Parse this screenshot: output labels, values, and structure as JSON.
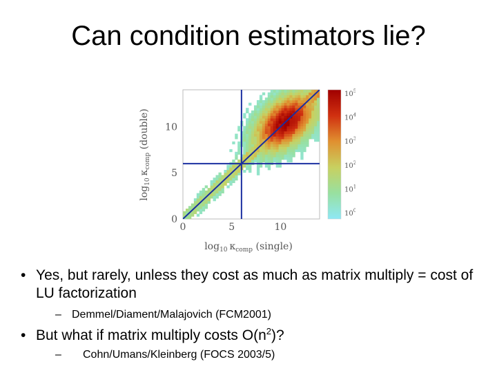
{
  "title": "Can condition estimators lie?",
  "bullets": [
    {
      "text": "Yes, but rarely, unless they cost as much as matrix multiply = cost of LU factorization",
      "sub": "Demmel/Diament/Malajovich (FCM2001)"
    },
    {
      "text_pre": "But what if matrix multiply costs O(n",
      "text_sup": "2",
      "text_post": ")?",
      "sub": "Cohn/Umans/Kleinberg (FOCS 2003/5)"
    }
  ],
  "chart_data": {
    "type": "heatmap",
    "xlabel_base": "log",
    "xlabel_sub": "10",
    "xlabel_kappa": "κ",
    "xlabel_ksub": "comp",
    "xlabel_tail": " (single)",
    "ylabel_base": "log",
    "ylabel_sub": "10",
    "ylabel_kappa": "κ",
    "ylabel_ksub": "comp",
    "ylabel_tail": " (double)",
    "xlim": [
      0,
      14
    ],
    "ylim": [
      0,
      14
    ],
    "x_ticks": [
      0,
      5,
      10
    ],
    "y_ticks": [
      0,
      5,
      10
    ],
    "colorbar_ticks": [
      {
        "base": "10",
        "exp": "0"
      },
      {
        "base": "10",
        "exp": "1"
      },
      {
        "base": "10",
        "exp": "2"
      },
      {
        "base": "10",
        "exp": "3"
      },
      {
        "base": "10",
        "exp": "4"
      },
      {
        "base": "10",
        "exp": "5"
      }
    ],
    "colorbar_range": [
      0,
      5
    ],
    "reference_lines": [
      {
        "orientation": "vertical",
        "x": 6
      },
      {
        "orientation": "horizontal",
        "y": 6
      },
      {
        "orientation": "diagonal",
        "from": [
          0,
          0
        ],
        "to": [
          14,
          14
        ]
      }
    ],
    "density_cluster": {
      "center": [
        10.5,
        10.5
      ],
      "spread": 2.2,
      "peak_log_count": 5
    },
    "colors": {
      "line": "#1a2ea0",
      "colormap": [
        "#8ee8f5",
        "#98e0a0",
        "#c8d060",
        "#e09030",
        "#d03010",
        "#a00000"
      ]
    }
  }
}
